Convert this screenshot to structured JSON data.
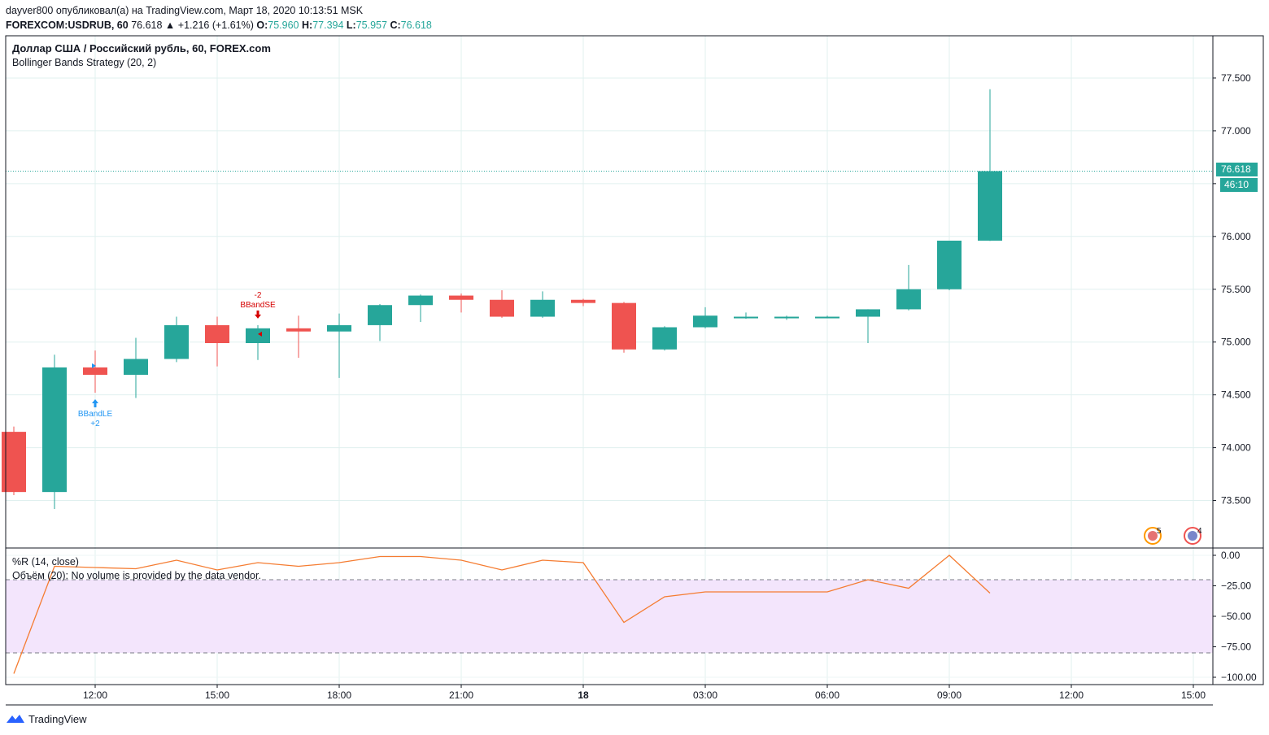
{
  "header": {
    "line1": "dayver800 опубликовал(а) на TradingView.com, Март 18, 2020 10:13:51 MSK",
    "symbol": "FOREXCOM:USDRUB, 60",
    "last": "76.618",
    "change": "▲ +1.216 (+1.61%)",
    "o_label": "O:",
    "o_value": "75.960",
    "h_label": "H:",
    "h_value": "77.394",
    "l_label": "L:",
    "l_value": "75.957",
    "c_label": "C:",
    "c_value": "76.618"
  },
  "legend": {
    "series_title": "Доллар США / Российский рубль, 60, FOREX.com",
    "strategy": "Bollinger Bands Strategy (20, 2)",
    "wr_title": "%R (14, close)",
    "volume_note": "Объём (20): No volume is provided by the data vendor."
  },
  "price_badge": {
    "price": "76.618",
    "countdown": "46:10"
  },
  "events": {
    "badge1": "5",
    "badge2": "4"
  },
  "footer": {
    "brand": "TradingView"
  },
  "colors": {
    "up": "#26a69a",
    "down": "#ef5350",
    "wr_line": "#f57c31",
    "long_signal": "#2196f3",
    "short_signal": "#d50000",
    "wr_band": "#f3e5fc"
  },
  "chart_data": [
    {
      "type": "candlestick",
      "title": "Доллар США / Российский рубль, 60, FOREX.com",
      "x_ticks": [
        "12:00",
        "15:00",
        "18:00",
        "21:00",
        "18",
        "03:00",
        "06:00",
        "09:00",
        "12:00",
        "15:00"
      ],
      "y_ticks": [
        "73.500",
        "74.000",
        "74.500",
        "75.000",
        "75.500",
        "76.000",
        "76.500",
        "77.000",
        "77.500"
      ],
      "ylim": [
        73.05,
        77.9
      ],
      "candles": [
        {
          "time": "10:00",
          "o": 74.15,
          "h": 74.2,
          "l": 73.55,
          "c": 73.58
        },
        {
          "time": "11:00",
          "o": 73.58,
          "h": 74.88,
          "l": 73.42,
          "c": 74.76
        },
        {
          "time": "12:00",
          "o": 74.76,
          "h": 74.92,
          "l": 74.52,
          "c": 74.69
        },
        {
          "time": "13:00",
          "o": 74.69,
          "h": 75.04,
          "l": 74.47,
          "c": 74.84
        },
        {
          "time": "14:00",
          "o": 74.84,
          "h": 75.24,
          "l": 74.81,
          "c": 75.16
        },
        {
          "time": "15:00",
          "o": 75.16,
          "h": 75.24,
          "l": 74.77,
          "c": 74.99
        },
        {
          "time": "16:00",
          "o": 74.99,
          "h": 75.16,
          "l": 74.83,
          "c": 75.13
        },
        {
          "time": "17:00",
          "o": 75.13,
          "h": 75.25,
          "l": 74.85,
          "c": 75.1
        },
        {
          "time": "18:00",
          "o": 75.1,
          "h": 75.27,
          "l": 74.66,
          "c": 75.16
        },
        {
          "time": "19:00",
          "o": 75.16,
          "h": 75.36,
          "l": 75.01,
          "c": 75.35
        },
        {
          "time": "20:00",
          "o": 75.35,
          "h": 75.45,
          "l": 75.19,
          "c": 75.44
        },
        {
          "time": "21:00",
          "o": 75.44,
          "h": 75.46,
          "l": 75.28,
          "c": 75.4
        },
        {
          "time": "22:00",
          "o": 75.4,
          "h": 75.49,
          "l": 75.23,
          "c": 75.24
        },
        {
          "time": "23:00",
          "o": 75.24,
          "h": 75.48,
          "l": 75.23,
          "c": 75.4
        },
        {
          "time": "00:00",
          "o": 75.4,
          "h": 75.41,
          "l": 75.34,
          "c": 75.37
        },
        {
          "time": "01:00",
          "o": 75.37,
          "h": 75.38,
          "l": 74.9,
          "c": 74.93
        },
        {
          "time": "02:00",
          "o": 74.93,
          "h": 75.15,
          "l": 74.92,
          "c": 75.14
        },
        {
          "time": "03:00",
          "o": 75.14,
          "h": 75.33,
          "l": 75.13,
          "c": 75.25
        },
        {
          "time": "04:00",
          "o": 75.23,
          "h": 75.28,
          "l": 75.22,
          "c": 75.24
        },
        {
          "time": "05:00",
          "o": 75.23,
          "h": 75.25,
          "l": 75.21,
          "c": 75.24
        },
        {
          "time": "06:00",
          "o": 75.23,
          "h": 75.25,
          "l": 75.23,
          "c": 75.24
        },
        {
          "time": "07:00",
          "o": 75.24,
          "h": 75.31,
          "l": 74.99,
          "c": 75.31
        },
        {
          "time": "08:00",
          "o": 75.31,
          "h": 75.73,
          "l": 75.3,
          "c": 75.5
        },
        {
          "time": "09:00",
          "o": 75.5,
          "h": 75.96,
          "l": 75.49,
          "c": 75.96
        },
        {
          "time": "10:00",
          "o": 75.96,
          "h": 77.394,
          "l": 75.957,
          "c": 76.618
        }
      ],
      "signals": [
        {
          "time": "12:00",
          "name": "BBandLE",
          "qty": "+2",
          "direction": "long"
        },
        {
          "time": "16:00",
          "name": "BBandSE",
          "qty": "-2",
          "direction": "short"
        }
      ],
      "last_price": 76.618,
      "last_price_label": "76.618",
      "last_price_line": "dotted",
      "grid": true
    },
    {
      "type": "line",
      "title": "%R (14, close)",
      "y_ticks": [
        "0.00",
        "−25.00",
        "−50.00",
        "−75.00",
        "−100.00"
      ],
      "ylim": [
        -106,
        6
      ],
      "bands": [
        -20,
        -80
      ],
      "x": [
        "10:00",
        "11:00",
        "12:00",
        "13:00",
        "14:00",
        "15:00",
        "16:00",
        "17:00",
        "18:00",
        "19:00",
        "20:00",
        "21:00",
        "22:00",
        "23:00",
        "00:00",
        "01:00",
        "02:00",
        "03:00",
        "04:00",
        "05:00",
        "06:00",
        "07:00",
        "08:00",
        "09:00",
        "10:00"
      ],
      "values": [
        -97,
        -9,
        -10,
        -11,
        -4,
        -12,
        -6,
        -9,
        -6,
        -1,
        -1,
        -4,
        -12,
        -4,
        -6,
        -55,
        -34,
        -30,
        -30,
        -30,
        -30,
        -20,
        -27,
        0,
        -31
      ]
    }
  ]
}
